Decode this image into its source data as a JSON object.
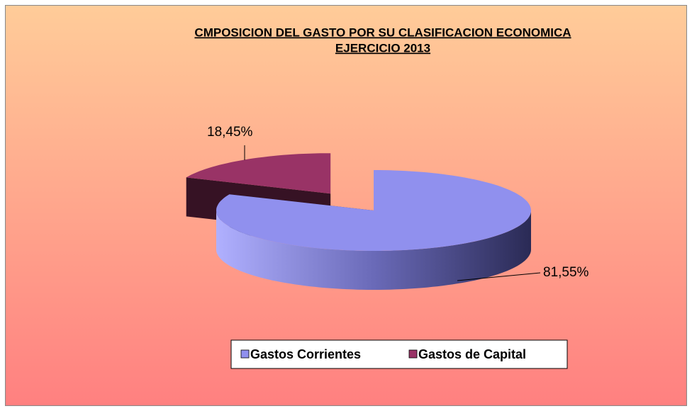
{
  "chart_data": {
    "type": "pie",
    "title": "CMPOSICION DEL GASTO POR SU CLASIFICACION ECONOMICA",
    "subtitle": "EJERCICIO 2013",
    "categories": [
      "Gastos Corrientes",
      "Gastos de Capital"
    ],
    "values": [
      81.55,
      18.45
    ],
    "value_labels": [
      "81,55%",
      "18,45%"
    ],
    "colors": [
      "#9090ee",
      "#993366"
    ],
    "legend": "bottom"
  }
}
